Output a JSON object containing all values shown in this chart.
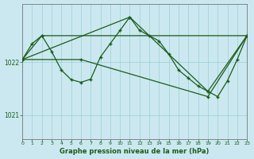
{
  "background_color": "#cbe8f0",
  "plot_bg_color": "#cbe8f0",
  "grid_color": "#9ecfcf",
  "line_color": "#1a5c1a",
  "xlim": [
    0,
    23
  ],
  "ylim": [
    1020.55,
    1023.1
  ],
  "yticks": [
    1021,
    1022
  ],
  "xticks": [
    0,
    1,
    2,
    3,
    4,
    5,
    6,
    7,
    8,
    9,
    10,
    11,
    12,
    13,
    14,
    15,
    16,
    17,
    18,
    19,
    20,
    21,
    22,
    23
  ],
  "xlabel": "Graphe pression niveau de la mer (hPa)",
  "line1_x": [
    0,
    1,
    2,
    3,
    4,
    5,
    6,
    7,
    8,
    9,
    10,
    11,
    12,
    13,
    14,
    15,
    16,
    17,
    18,
    19,
    20,
    21,
    22,
    23
  ],
  "line1_y": [
    1022.05,
    1022.35,
    1022.5,
    1022.2,
    1021.85,
    1021.67,
    1021.62,
    1021.68,
    1022.1,
    1022.35,
    1022.6,
    1022.85,
    1022.6,
    1022.5,
    1022.4,
    1022.15,
    1021.85,
    1021.7,
    1021.55,
    1021.45,
    1021.35,
    1021.65,
    1022.05,
    1022.5
  ],
  "line2_x": [
    0,
    2,
    23
  ],
  "line2_y": [
    1022.05,
    1022.5,
    1022.5
  ],
  "line3_x": [
    0,
    11,
    19,
    23
  ],
  "line3_y": [
    1022.05,
    1022.85,
    1021.45,
    1022.5
  ],
  "line4_x": [
    0,
    6,
    19,
    23
  ],
  "line4_y": [
    1022.05,
    1022.05,
    1021.35,
    1022.5
  ]
}
